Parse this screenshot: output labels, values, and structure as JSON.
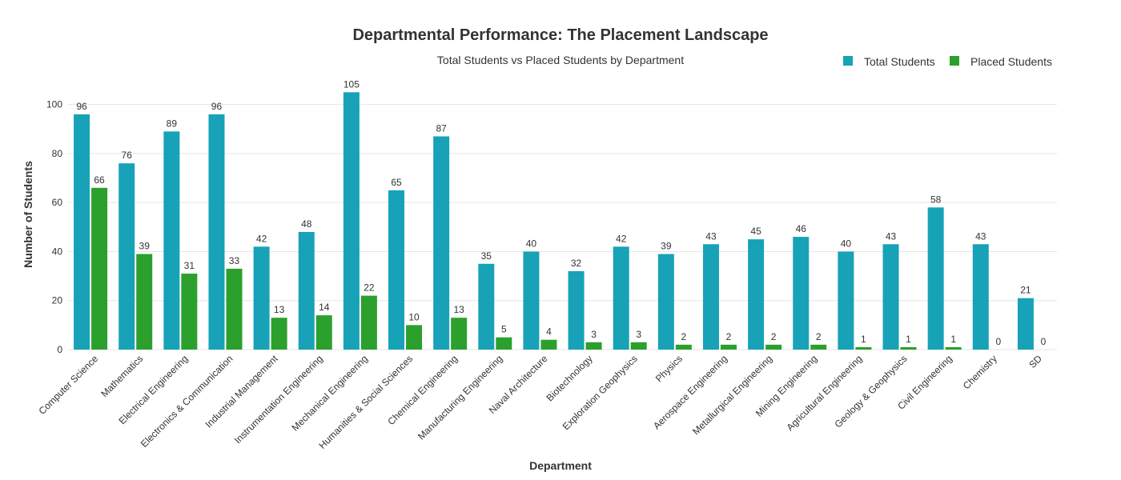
{
  "chart_data": {
    "type": "bar",
    "title": "Departmental Performance: The Placement Landscape",
    "subtitle": "Total Students vs Placed Students by Department",
    "xlabel": "Department",
    "ylabel": "Number of Students",
    "ylim": [
      0,
      110
    ],
    "yticks": [
      0,
      20,
      40,
      60,
      80,
      100
    ],
    "grid": true,
    "legend_position": "top-right",
    "categories": [
      "Computer Science",
      "Mathematics",
      "Electrical Engineering",
      "Electronics & Communication",
      "Industrial Management",
      "Instrumentation Engineering",
      "Mechanical Engineering",
      "Humanities & Social Sciences",
      "Chemical Engineering",
      "Manufacturing Engineering",
      "Naval Architecture",
      "Biotechnology",
      "Exploration Geophysics",
      "Physics",
      "Aerospace Engineering",
      "Metallurgical Engineering",
      "Mining Engineering",
      "Agricultural Engineering",
      "Geology & Geophysics",
      "Civil Engineering",
      "Chemistry",
      "SD"
    ],
    "series": [
      {
        "name": "Total Students",
        "color": "#17a2b8",
        "values": [
          96,
          76,
          89,
          96,
          42,
          48,
          105,
          65,
          87,
          35,
          40,
          32,
          42,
          39,
          43,
          45,
          46,
          40,
          43,
          58,
          43,
          21
        ]
      },
      {
        "name": "Placed Students",
        "color": "#2ca02c",
        "values": [
          66,
          39,
          31,
          33,
          13,
          14,
          22,
          10,
          13,
          5,
          4,
          3,
          3,
          2,
          2,
          2,
          2,
          1,
          1,
          1,
          0,
          0
        ]
      }
    ]
  }
}
